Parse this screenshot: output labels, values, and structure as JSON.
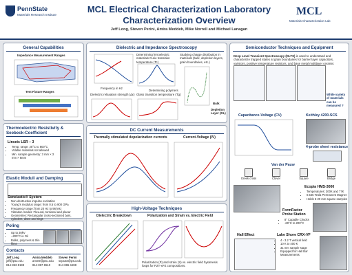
{
  "header": {
    "logo_name": "PennState",
    "logo_sub": "Materials Research Institute",
    "title_line1": "MCL Electrical Characterization Laboratory",
    "title_line2": "Characterization Overview",
    "authors": "Jeff Long, Steven Perini, Amira Meddeb, Mike Norrell and Michael Lanagan",
    "mcl_logo": "MCL",
    "mcl_sub": "Materials Characterization Lab"
  },
  "general": {
    "title": "General Capabilities",
    "chart1": "Impedance Measurement Ranges",
    "chart2": "Test Fixture Ranges"
  },
  "thermo": {
    "title": "Thermoelectric Resistivity & Seebeck-Coefficient",
    "instrument": "Linseis LSR – 3",
    "bullets": [
      "Temp. range: 25°C to 800°C",
      "Volatile materials not allowed",
      "Min. sample geometry: 3 mm × 3 mm × 8mm"
    ]
  },
  "elastic": {
    "title": "Elastic Moduli and Damping",
    "instrument": "Sonelastic® System",
    "bullets": [
      "Non-destructive impulse excitation",
      "Young’s modulus range: from 0.5 to 900 GPa",
      "Frequency range: from 20 Hz to 96 kHz",
      "Vibration modes: Flexural, torsional and planar",
      "Geometries: Rectangular cross-sectioned bars, cylinders, discs and rings"
    ]
  },
  "poling": {
    "title": "Poling",
    "bullets": [
      "Up to 30kV",
      "~200°C in Oil",
      "Bulks, polymers & thin films"
    ]
  },
  "contacts": {
    "title": "Contacts",
    "people": [
      {
        "name": "Jeff Long",
        "email": "jeff@psu.edu",
        "phone": "814-863-8198"
      },
      {
        "name": "Amira Meddeb",
        "email": "amm9@psu.edu",
        "phone": "814-867-6510"
      },
      {
        "name": "Steven Perini",
        "email": "sep133@psu.edu",
        "phone": "814-865-1598"
      }
    ]
  },
  "dielectric": {
    "title": "Dielectric and Impedance Spectroscopy",
    "curie": "Determining ferroelectric materials Curie transition temperature (Tc)",
    "charge": "Studying charge distribution in materials (bulk, depletion layers, grain boundaries, etc.)",
    "polymers": "Determining polymers",
    "relax": "Dielectric relaxation strength (Δε)",
    "glass": "Glass transition temperature (Tg)",
    "freq": "Frequency in Hz",
    "bulk": "Bulk",
    "depletion": "Depletion Layer (DL)"
  },
  "dc": {
    "title": "DC Current Measurements",
    "tsdc": "Thermally stimulated depolarization currents",
    "iv": "Current-Voltage (IV)"
  },
  "hv": {
    "title": "High-Voltage Techniques",
    "breakdown": "Dielectric Breakdown",
    "pe": "Polarization and Strain vs. Electric Field",
    "caption": "Polarization (P) and strain (S) vs. electric field hysteresis loops for PZT-xPZ compositions."
  },
  "semi": {
    "title": "Semiconductor Techniques and Equipment",
    "dlts_name": "Deep Level Transient Spectroscopy (DLTS)",
    "dlts_text": "is used to understand and characterize trapped states at grain boundaries for barrier layer capacitors, varistors, positive temperature resistors, and base metal multilayer ceramic capacitors",
    "dlts_q": "While variety of materials can be measured ?",
    "cv": "Capacitance-Voltage (CV)",
    "keithley": "Keithley 4200-SCS",
    "four_probe": "4-probe sheet resistance",
    "vdp": "Van der Pauw",
    "shapes": [
      "Greek cross",
      "Clover",
      "Square",
      "Bridge"
    ],
    "ecopia": "Ecopia HMS-3000",
    "ecopia_bullets": [
      "Temperatures: 300K and 77K",
      "0.545 Tesla Permanent Magnet",
      "Holds 5-20 mm square samples"
    ],
    "formfactor": "FormFactor Probe Station",
    "formfactor_bullets": [
      "8\" Capable Chucks",
      "-60°C to 200°C"
    ],
    "hall": "Hall Effect",
    "lakeshore": "Lake Shore CRX-VF",
    "lakeshore_bullets": [
      "4 - 3.2 T vertical field",
      "10 K to 400 K",
      "31 mm sample stage",
      "Equipped for Hall Bar Measurements"
    ]
  }
}
